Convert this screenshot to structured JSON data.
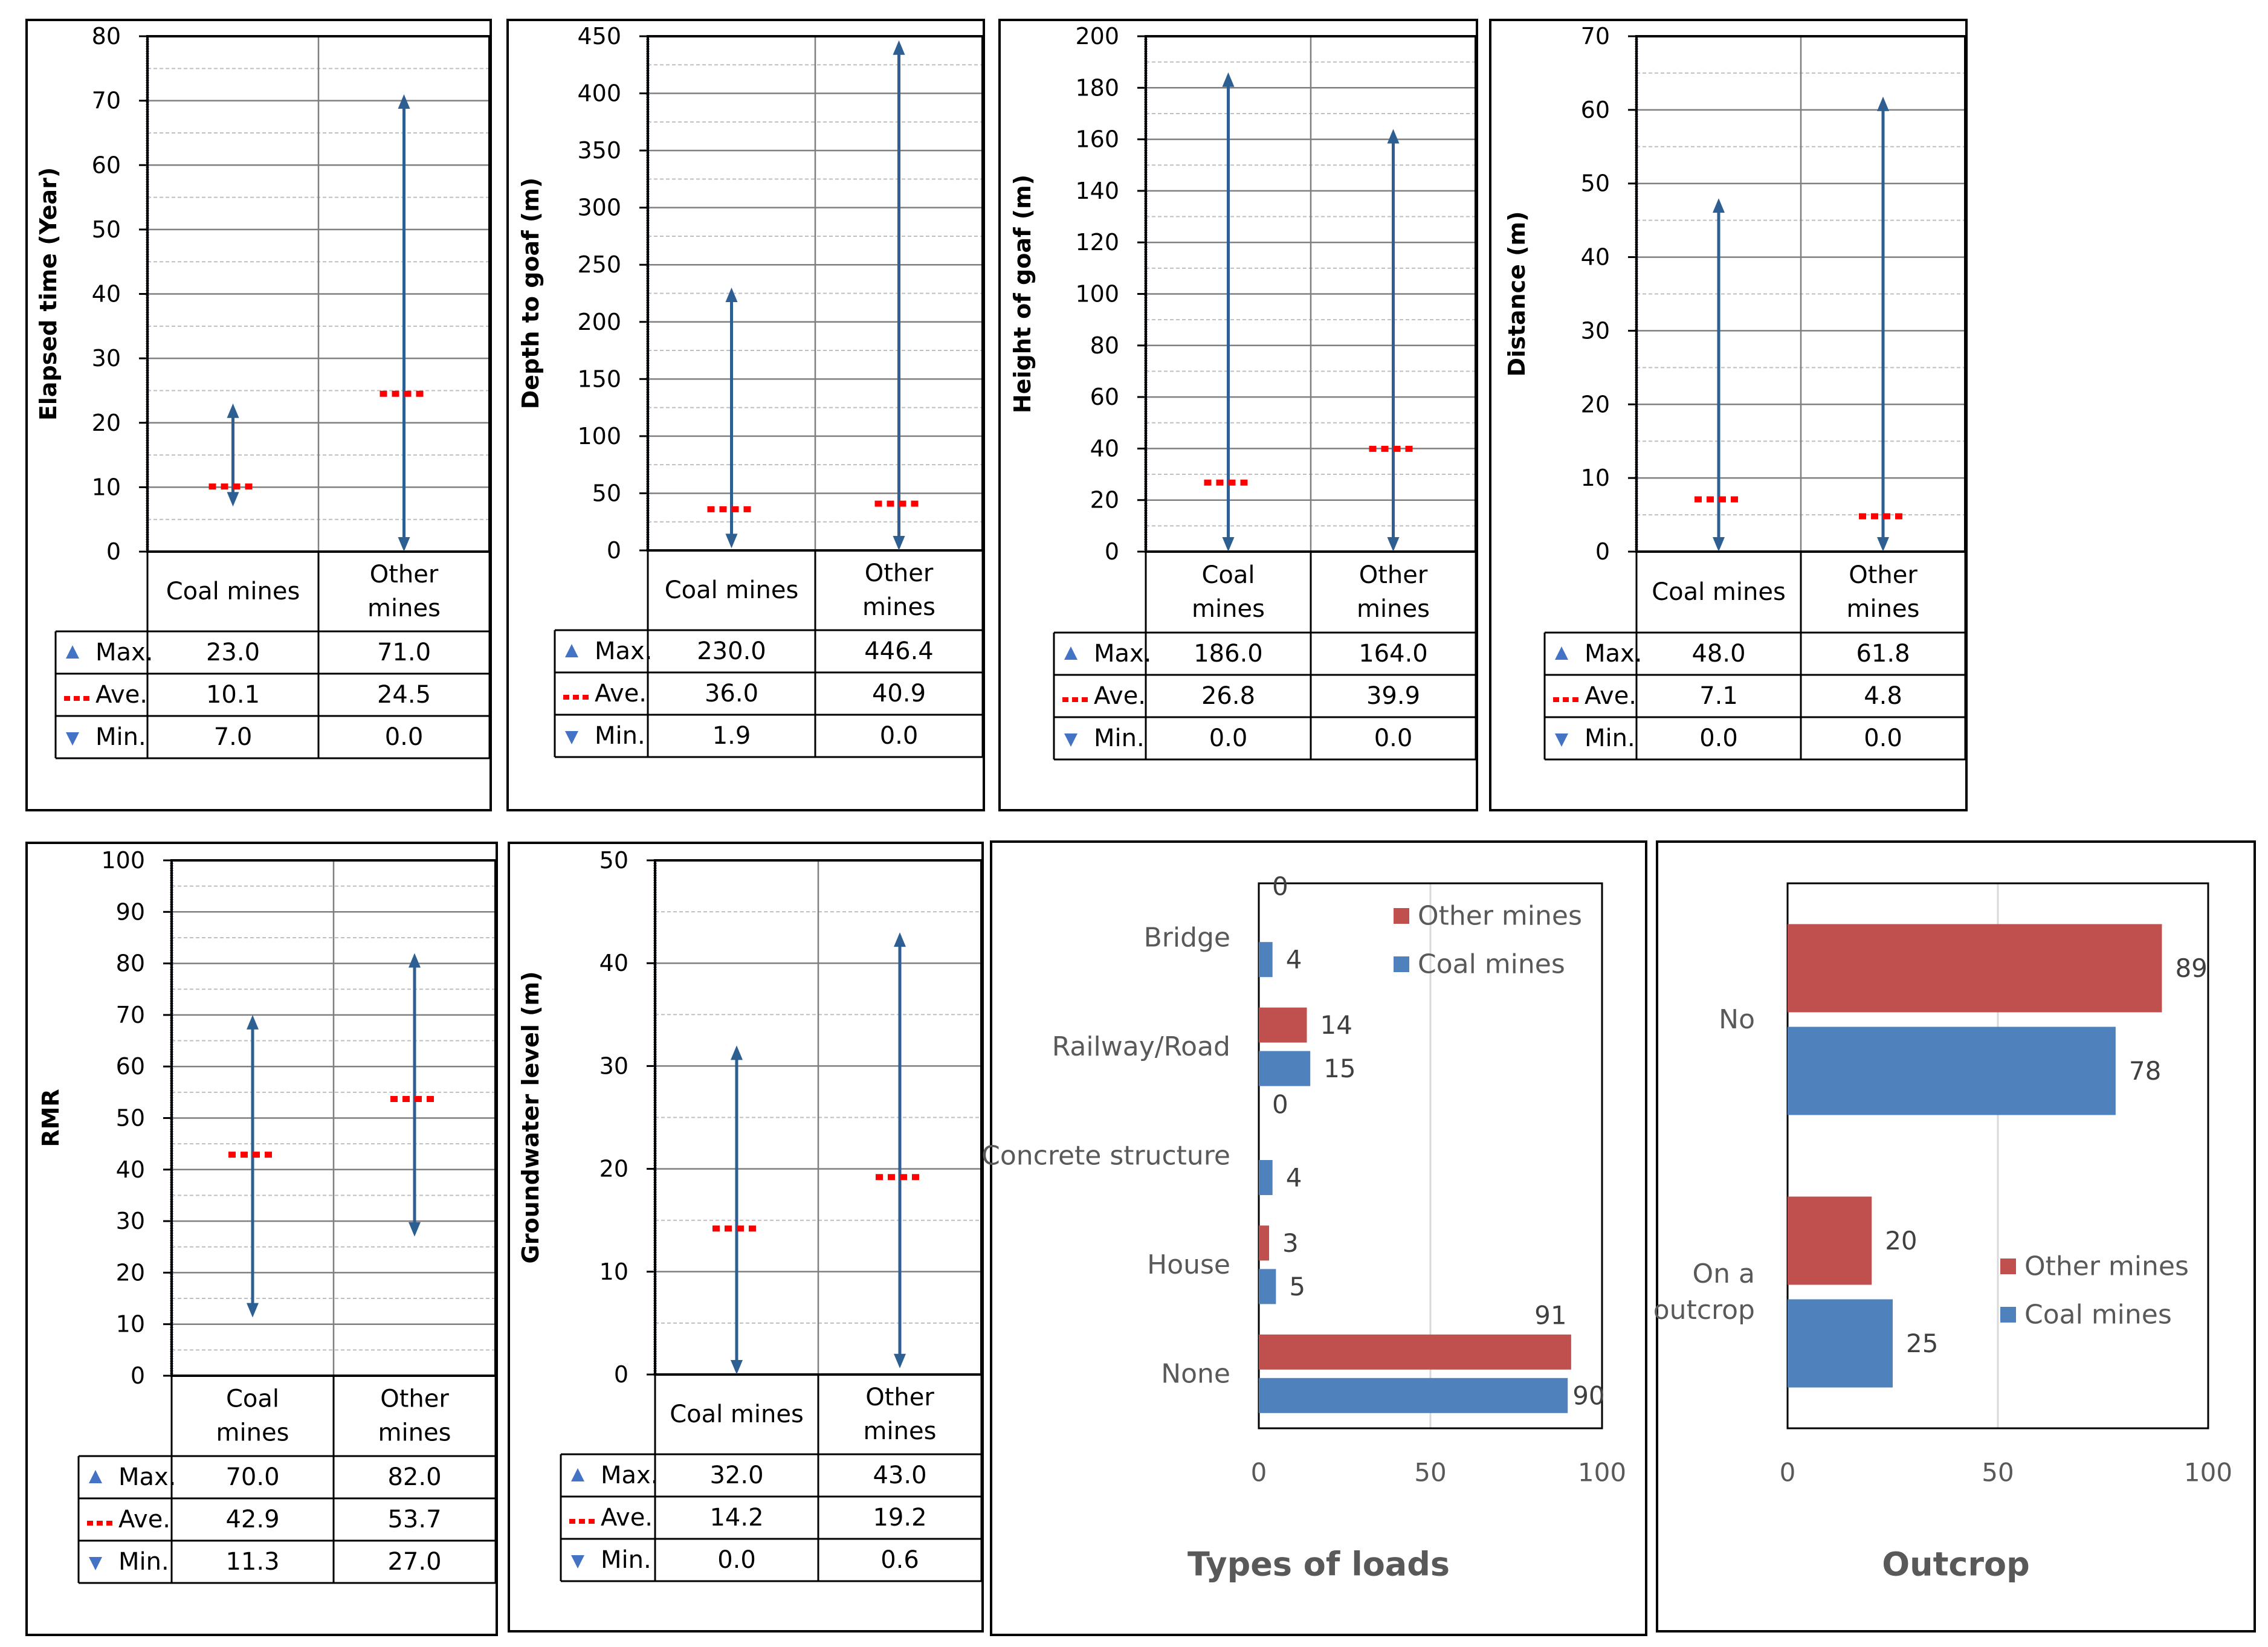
{
  "colors": {
    "arrow": "#2E5F93",
    "average": "#FF0000",
    "tri": "#4472C4",
    "other_mines_bar": "#C0504D",
    "coal_mines_bar": "#4F81BD",
    "grid": "#7F7F7F",
    "grid_minor": "#BFBFBF"
  },
  "chart_data": [
    {
      "type": "range",
      "ylabel": "Elapsed time (Year)",
      "ylim": [
        0,
        80
      ],
      "ymajor": 10,
      "yminor": 5,
      "categories": [
        "Coal mines",
        "Other mines"
      ],
      "cat_lines": [
        [
          "Coal mines"
        ],
        [
          "Other",
          "mines"
        ]
      ],
      "rows": [
        {
          "name": "Max.",
          "marker": "▲",
          "values": [
            "23.0",
            "71.0"
          ]
        },
        {
          "name": "Ave.",
          "marker": "- - -",
          "values": [
            "10.1",
            "24.5"
          ]
        },
        {
          "name": "Min.",
          "marker": "▼",
          "values": [
            "7.0",
            "0.0"
          ]
        }
      ],
      "series": {
        "max": [
          23.0,
          71.0
        ],
        "ave": [
          10.1,
          24.5
        ],
        "min": [
          7.0,
          0.0
        ]
      }
    },
    {
      "type": "range",
      "ylabel": "Depth to goaf (m)",
      "ylim": [
        0,
        450
      ],
      "ymajor": 50,
      "yminor": 25,
      "categories": [
        "Coal mines",
        "Other mines"
      ],
      "cat_lines": [
        [
          "Coal mines"
        ],
        [
          "Other",
          "mines"
        ]
      ],
      "rows": [
        {
          "name": "Max.",
          "marker": "▲",
          "values": [
            "230.0",
            "446.4"
          ]
        },
        {
          "name": "Ave.",
          "marker": "- - -",
          "values": [
            "36.0",
            "40.9"
          ]
        },
        {
          "name": "Min.",
          "marker": "▼",
          "values": [
            "1.9",
            "0.0"
          ]
        }
      ],
      "series": {
        "max": [
          230.0,
          446.4
        ],
        "ave": [
          36.0,
          40.9
        ],
        "min": [
          1.9,
          0.0
        ]
      }
    },
    {
      "type": "range",
      "ylabel": "Height of goaf (m)",
      "ylim": [
        0,
        200
      ],
      "ymajor": 20,
      "yminor": 10,
      "categories": [
        "Coal mines",
        "Other mines"
      ],
      "cat_lines": [
        [
          "Coal",
          "mines"
        ],
        [
          "Other",
          "mines"
        ]
      ],
      "rows": [
        {
          "name": "Max.",
          "marker": "▲",
          "values": [
            "186.0",
            "164.0"
          ]
        },
        {
          "name": "Ave.",
          "marker": "- - -",
          "values": [
            "26.8",
            "39.9"
          ]
        },
        {
          "name": "Min.",
          "marker": "▼",
          "values": [
            "0.0",
            "0.0"
          ]
        }
      ],
      "series": {
        "max": [
          186.0,
          164.0
        ],
        "ave": [
          26.8,
          39.9
        ],
        "min": [
          0.0,
          0.0
        ]
      }
    },
    {
      "type": "range",
      "ylabel": "Distance (m)",
      "ylim": [
        0,
        70
      ],
      "ymajor": 10,
      "yminor": 5,
      "categories": [
        "Coal mines",
        "Other mines"
      ],
      "cat_lines": [
        [
          "Coal mines"
        ],
        [
          "Other",
          "mines"
        ]
      ],
      "rows": [
        {
          "name": "Max.",
          "marker": "▲",
          "values": [
            "48.0",
            "61.8"
          ]
        },
        {
          "name": "Ave.",
          "marker": "- - -",
          "values": [
            "7.1",
            "4.8"
          ]
        },
        {
          "name": "Min.",
          "marker": "▼",
          "values": [
            "0.0",
            "0.0"
          ]
        }
      ],
      "series": {
        "max": [
          48.0,
          61.8
        ],
        "ave": [
          7.1,
          4.8
        ],
        "min": [
          0.0,
          0.0
        ]
      }
    },
    {
      "type": "range",
      "ylabel": "RMR",
      "ylim": [
        0,
        100
      ],
      "ymajor": 10,
      "yminor": 5,
      "categories": [
        "Coal mines",
        "Other mines"
      ],
      "cat_lines": [
        [
          "Coal",
          "mines"
        ],
        [
          "Other",
          "mines"
        ]
      ],
      "rows": [
        {
          "name": "Max.",
          "marker": "▲",
          "values": [
            "70.0",
            "82.0"
          ]
        },
        {
          "name": "Ave.",
          "marker": "- - -",
          "values": [
            "42.9",
            "53.7"
          ]
        },
        {
          "name": "Min.",
          "marker": "▼",
          "values": [
            "11.3",
            "27.0"
          ]
        }
      ],
      "series": {
        "max": [
          70.0,
          82.0
        ],
        "ave": [
          42.9,
          53.7
        ],
        "min": [
          11.3,
          27.0
        ]
      }
    },
    {
      "type": "range",
      "ylabel": "Groundwater level (m)",
      "ylim": [
        0,
        50
      ],
      "ymajor": 10,
      "yminor": 5,
      "categories": [
        "Coal mines",
        "Other mines"
      ],
      "cat_lines": [
        [
          "Coal mines"
        ],
        [
          "Other",
          "mines"
        ]
      ],
      "rows": [
        {
          "name": "Max.",
          "marker": "▲",
          "values": [
            "32.0",
            "43.0"
          ]
        },
        {
          "name": "Ave.",
          "marker": "- - -",
          "values": [
            "14.2",
            "19.2"
          ]
        },
        {
          "name": "Min.",
          "marker": "▼",
          "values": [
            "0.0",
            "0.6"
          ]
        }
      ],
      "series": {
        "max": [
          32.0,
          43.0
        ],
        "ave": [
          14.2,
          19.2
        ],
        "min": [
          0.0,
          0.6
        ]
      }
    },
    {
      "type": "bar",
      "orientation": "horizontal",
      "title": "Types of loads",
      "categories": [
        "Bridge",
        "Railway/Road",
        "Concrete structure",
        "House",
        "None"
      ],
      "cat_lines": [
        [
          "Bridge"
        ],
        [
          "Railway/Road"
        ],
        [
          "Concrete structure"
        ],
        [
          "House"
        ],
        [
          "None"
        ]
      ],
      "xlim": [
        0,
        100
      ],
      "xticks": [
        0,
        50,
        100
      ],
      "legend": "top-right",
      "series": [
        {
          "name": "Other mines",
          "values": [
            0,
            14,
            0,
            3,
            91
          ]
        },
        {
          "name": "Coal mines",
          "values": [
            4,
            15,
            4,
            5,
            90
          ]
        }
      ]
    },
    {
      "type": "bar",
      "orientation": "horizontal",
      "title": "Outcrop",
      "categories": [
        "No",
        "On a outcrop"
      ],
      "cat_lines": [
        [
          "No"
        ],
        [
          "On a",
          "outcrop"
        ]
      ],
      "xlim": [
        0,
        100
      ],
      "xticks": [
        0,
        50,
        100
      ],
      "legend": "bottom-right",
      "series": [
        {
          "name": "Other mines",
          "values": [
            89,
            20
          ]
        },
        {
          "name": "Coal mines",
          "values": [
            78,
            25
          ]
        }
      ]
    }
  ]
}
